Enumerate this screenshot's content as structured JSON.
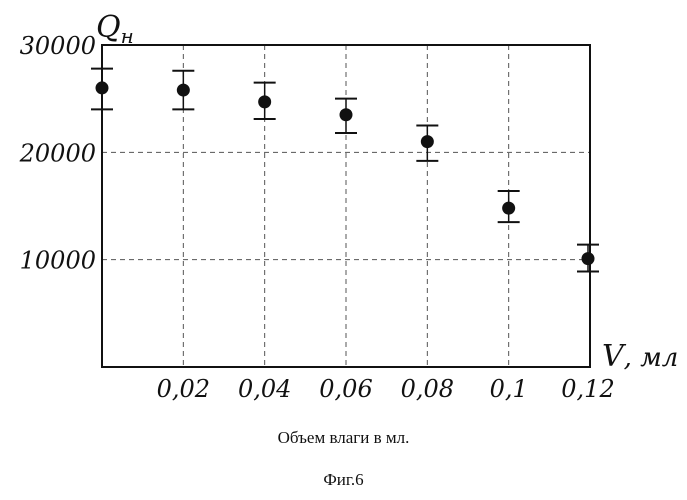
{
  "chart_data": {
    "type": "scatter",
    "x_label": "V, мл",
    "y_label": "Qн",
    "x_ticks": [
      {
        "value": 0.02,
        "label": "0,02"
      },
      {
        "value": 0.04,
        "label": "0,04"
      },
      {
        "value": 0.06,
        "label": "0,06"
      },
      {
        "value": 0.08,
        "label": "0,08"
      },
      {
        "value": 0.1,
        "label": "0,1"
      },
      {
        "value": 0.12,
        "label": "0,12"
      }
    ],
    "y_ticks": [
      {
        "value": 10000,
        "label": "10000"
      },
      {
        "value": 20000,
        "label": "20000"
      },
      {
        "value": 30000,
        "label": "30000"
      }
    ],
    "xlim": [
      0,
      0.12
    ],
    "ylim": [
      0,
      30000
    ],
    "grid": true,
    "grid_style": "dashed",
    "series": [
      {
        "points": [
          {
            "x": 0,
            "y": 26000,
            "err_low": 24000,
            "err_high": 27800
          },
          {
            "x": 0.02,
            "y": 25800,
            "err_low": 24000,
            "err_high": 27600
          },
          {
            "x": 0.04,
            "y": 24700,
            "err_low": 23100,
            "err_high": 26500
          },
          {
            "x": 0.06,
            "y": 23500,
            "err_low": 21800,
            "err_high": 25000
          },
          {
            "x": 0.08,
            "y": 21000,
            "err_low": 19200,
            "err_high": 22500
          },
          {
            "x": 0.1,
            "y": 14800,
            "err_low": 13500,
            "err_high": 16400
          },
          {
            "x": 0.12,
            "y": 10100,
            "err_low": 8900,
            "err_high": 11400
          }
        ]
      }
    ]
  },
  "caption": "Объем влаги в мл.",
  "figure_label": "Фиг.6"
}
